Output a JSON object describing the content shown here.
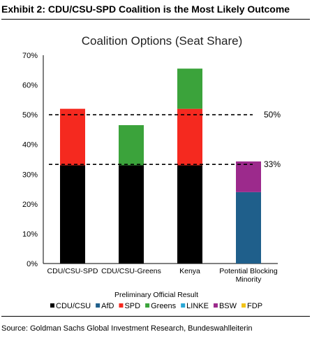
{
  "exhibit_title": "Exhibit 2: CDU/CSU-SPD Coalition is the Most Likely Outcome",
  "source": "Source: Goldman Sachs Global Investment Research, Bundeswahlleiterin",
  "chart_data": {
    "type": "bar",
    "stacked": true,
    "title": "Coalition Options (Seat Share)",
    "xlabel": "Preliminary Official Result",
    "ylabel": "",
    "ylim": [
      0,
      70
    ],
    "yticks": [
      "0%",
      "10%",
      "20%",
      "30%",
      "40%",
      "50%",
      "60%",
      "70%"
    ],
    "categories": [
      "CDU/CSU-SPD",
      "CDU/CSU-Greens",
      "Kenya",
      "Potential Blocking\nMinority"
    ],
    "series": [
      {
        "name": "CDU/CSU",
        "color": "#000000",
        "values": [
          33,
          33,
          33,
          0
        ]
      },
      {
        "name": "AfD",
        "color": "#1f5f8b",
        "values": [
          0,
          0,
          0,
          24
        ]
      },
      {
        "name": "SPD",
        "color": "#f5291f",
        "values": [
          19,
          0,
          19,
          0
        ]
      },
      {
        "name": "Greens",
        "color": "#3ba33b",
        "values": [
          0,
          13.5,
          13.5,
          0
        ]
      },
      {
        "name": "LINKE",
        "color": "#2aa7d6",
        "values": [
          0,
          0,
          0,
          0
        ]
      },
      {
        "name": "BSW",
        "color": "#9c2a8c",
        "values": [
          0,
          0,
          0,
          10.3
        ]
      },
      {
        "name": "FDP",
        "color": "#f2c318",
        "values": [
          0,
          0,
          0,
          0
        ]
      }
    ],
    "reference_lines": [
      {
        "value": 50,
        "label": "50%"
      },
      {
        "value": 33.3,
        "label": "33%"
      }
    ],
    "grid": false,
    "legend_position": "bottom"
  }
}
